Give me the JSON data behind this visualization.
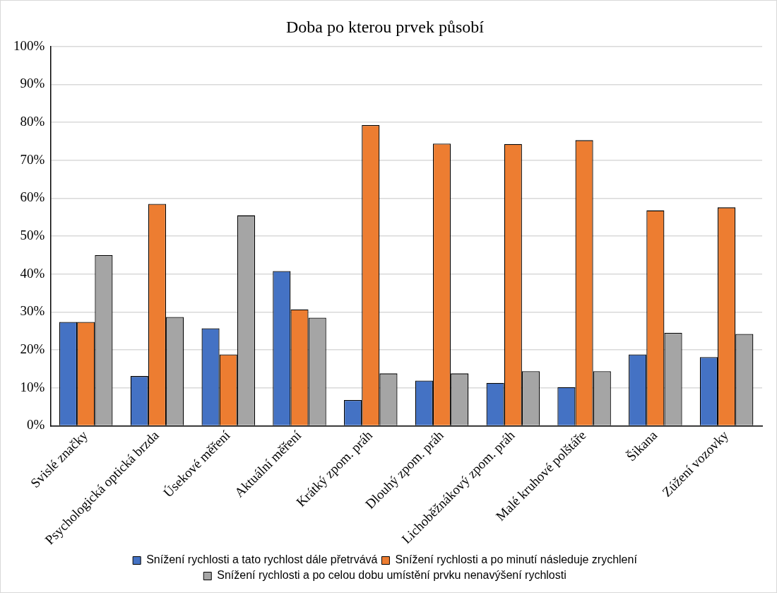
{
  "chart_data": {
    "type": "bar",
    "title": "Doba po kterou prvek působí",
    "categories": [
      "Svislé značky",
      "Psychologická optická brzda",
      "Úsekové měření",
      "Aktuální měření",
      "Krátký zpom. práh",
      "Dlouhý zpom. práh",
      "Lichoběžnákový zpom. práh",
      "Malé kruhové polštáře",
      "Šikana",
      "Zúžení vozovky"
    ],
    "series": [
      {
        "name": "Snížení rychlosti a tato rychlost dále přetrvává",
        "color": "#4472c4",
        "values": [
          27.4,
          13.1,
          25.7,
          40.8,
          6.8,
          11.9,
          11.3,
          10.2,
          18.8,
          18.1
        ]
      },
      {
        "name": "Snížení rychlosti a po minutí následuje zrychlení",
        "color": "#ed7d31",
        "values": [
          27.4,
          58.5,
          18.8,
          30.7,
          79.3,
          74.4,
          74.3,
          75.3,
          56.8,
          57.6
        ]
      },
      {
        "name": "Snížení rychlosti a po celou dobu umístění prvku nenavýšení rychlosti",
        "color": "#a5a5a5",
        "values": [
          45.0,
          28.7,
          55.5,
          28.5,
          13.8,
          13.8,
          14.4,
          14.4,
          24.5,
          24.2
        ]
      }
    ],
    "ylim": [
      0,
      100
    ],
    "yticks": [
      {
        "value": 0,
        "label": "0%"
      },
      {
        "value": 10,
        "label": "10%"
      },
      {
        "value": 20,
        "label": "20%"
      },
      {
        "value": 30,
        "label": "30%"
      },
      {
        "value": 40,
        "label": "40%"
      },
      {
        "value": 50,
        "label": "50%"
      },
      {
        "value": 60,
        "label": "60%"
      },
      {
        "value": 70,
        "label": "70%"
      },
      {
        "value": 80,
        "label": "80%"
      },
      {
        "value": 90,
        "label": "90%"
      },
      {
        "value": 100,
        "label": "100%"
      }
    ],
    "grid": "y",
    "legend": "bottom"
  }
}
